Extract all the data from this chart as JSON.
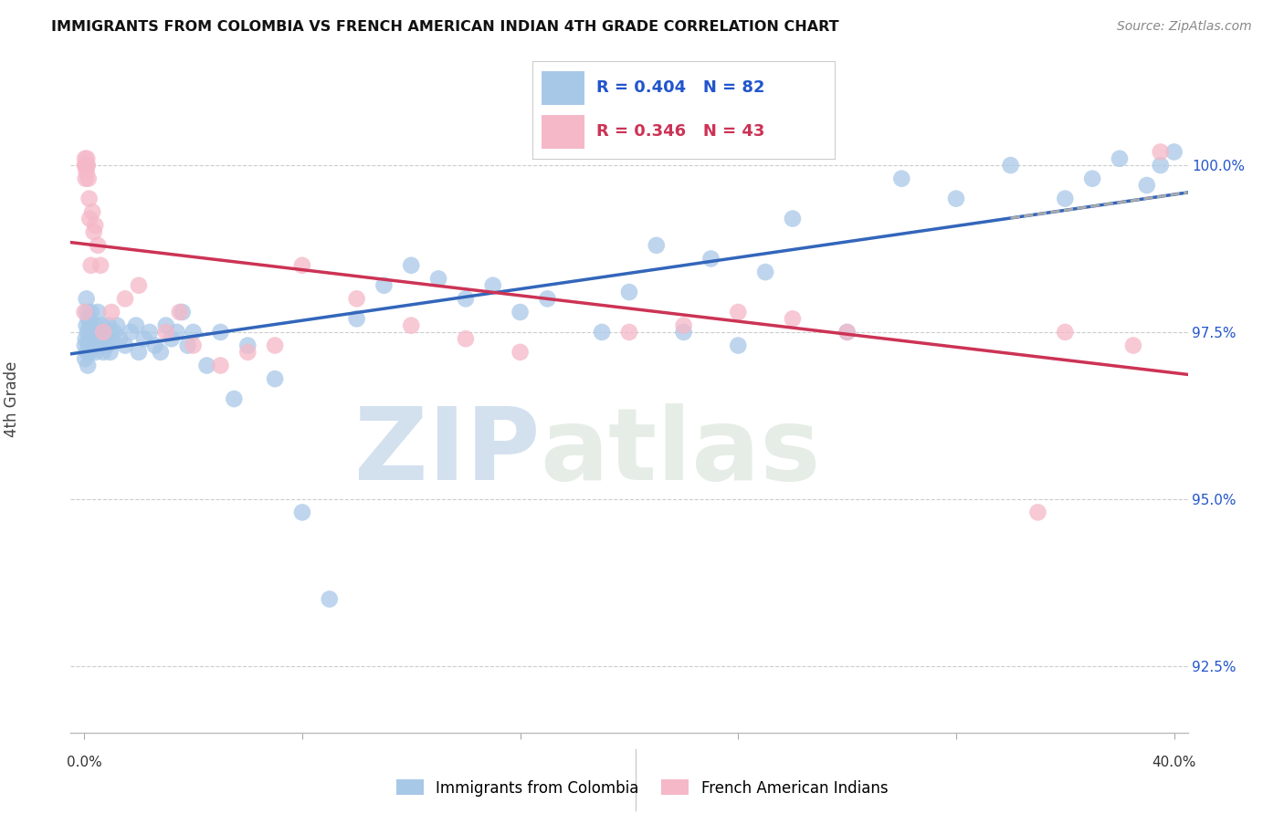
{
  "title": "IMMIGRANTS FROM COLOMBIA VS FRENCH AMERICAN INDIAN 4TH GRADE CORRELATION CHART",
  "source": "Source: ZipAtlas.com",
  "ylabel": "4th Grade",
  "ylabel_right_ticks": [
    92.5,
    95.0,
    97.5,
    100.0
  ],
  "ylabel_right_labels": [
    "92.5%",
    "95.0%",
    "97.5%",
    "100.0%"
  ],
  "legend_blue_label": "Immigrants from Colombia",
  "legend_pink_label": "French American Indians",
  "R_blue": 0.404,
  "N_blue": 82,
  "R_pink": 0.346,
  "N_pink": 43,
  "blue_color": "#a8c8e8",
  "pink_color": "#f5b8c8",
  "blue_line_color": "#3366bb",
  "pink_line_color": "#cc3355",
  "dashed_line_color": "#aaaaaa",
  "watermark_zip": "ZIP",
  "watermark_atlas": "atlas",
  "background_color": "#ffffff",
  "xmin": 0.0,
  "xmax": 40.0,
  "ymin": 91.5,
  "ymax": 101.5,
  "blue_x": [
    0.02,
    0.03,
    0.05,
    0.08,
    0.08,
    0.1,
    0.1,
    0.12,
    0.13,
    0.15,
    0.15,
    0.18,
    0.2,
    0.22,
    0.25,
    0.28,
    0.3,
    0.35,
    0.4,
    0.42,
    0.45,
    0.5,
    0.55,
    0.6,
    0.65,
    0.7,
    0.75,
    0.8,
    0.85,
    0.9,
    0.95,
    1.0,
    1.1,
    1.2,
    1.3,
    1.5,
    1.7,
    1.9,
    2.0,
    2.2,
    2.4,
    2.6,
    2.8,
    3.0,
    3.2,
    3.4,
    3.6,
    3.8,
    4.0,
    4.5,
    5.0,
    5.5,
    6.0,
    7.0,
    8.0,
    9.0,
    10.0,
    11.0,
    12.0,
    13.0,
    14.0,
    15.0,
    16.0,
    17.0,
    19.0,
    20.0,
    22.0,
    24.0,
    26.0,
    28.0,
    30.0,
    32.0,
    34.0,
    36.0,
    37.0,
    38.0,
    39.0,
    39.5,
    40.0,
    21.0,
    23.0,
    25.0
  ],
  "blue_y": [
    97.3,
    97.1,
    97.4,
    97.6,
    98.0,
    97.2,
    97.8,
    97.5,
    97.0,
    97.3,
    97.7,
    97.4,
    97.2,
    97.6,
    97.8,
    97.4,
    97.5,
    97.3,
    97.6,
    97.2,
    97.4,
    97.8,
    97.5,
    97.3,
    97.6,
    97.2,
    97.4,
    97.5,
    97.3,
    97.6,
    97.2,
    97.4,
    97.5,
    97.6,
    97.4,
    97.3,
    97.5,
    97.6,
    97.2,
    97.4,
    97.5,
    97.3,
    97.2,
    97.6,
    97.4,
    97.5,
    97.8,
    97.3,
    97.5,
    97.0,
    97.5,
    96.5,
    97.3,
    96.8,
    94.8,
    93.5,
    97.7,
    98.2,
    98.5,
    98.3,
    98.0,
    98.2,
    97.8,
    98.0,
    97.5,
    98.1,
    97.5,
    97.3,
    99.2,
    97.5,
    99.8,
    99.5,
    100.0,
    99.5,
    99.8,
    100.1,
    99.7,
    100.0,
    100.2,
    98.8,
    98.6,
    98.4
  ],
  "pink_x": [
    0.01,
    0.02,
    0.03,
    0.05,
    0.06,
    0.07,
    0.08,
    0.09,
    0.1,
    0.12,
    0.15,
    0.18,
    0.2,
    0.25,
    0.3,
    0.35,
    0.4,
    0.5,
    0.6,
    0.7,
    1.0,
    1.5,
    2.0,
    3.0,
    3.5,
    4.0,
    5.0,
    6.0,
    7.0,
    8.0,
    10.0,
    12.0,
    14.0,
    16.0,
    20.0,
    22.0,
    24.0,
    26.0,
    28.0,
    35.0,
    36.0,
    38.5,
    39.5
  ],
  "pink_y": [
    97.8,
    100.0,
    100.1,
    99.8,
    100.0,
    100.0,
    99.9,
    100.0,
    100.1,
    100.0,
    99.8,
    99.5,
    99.2,
    98.5,
    99.3,
    99.0,
    99.1,
    98.8,
    98.5,
    97.5,
    97.8,
    98.0,
    98.2,
    97.5,
    97.8,
    97.3,
    97.0,
    97.2,
    97.3,
    98.5,
    98.0,
    97.6,
    97.4,
    97.2,
    97.5,
    97.6,
    97.8,
    97.7,
    97.5,
    94.8,
    97.5,
    97.3,
    100.2
  ]
}
